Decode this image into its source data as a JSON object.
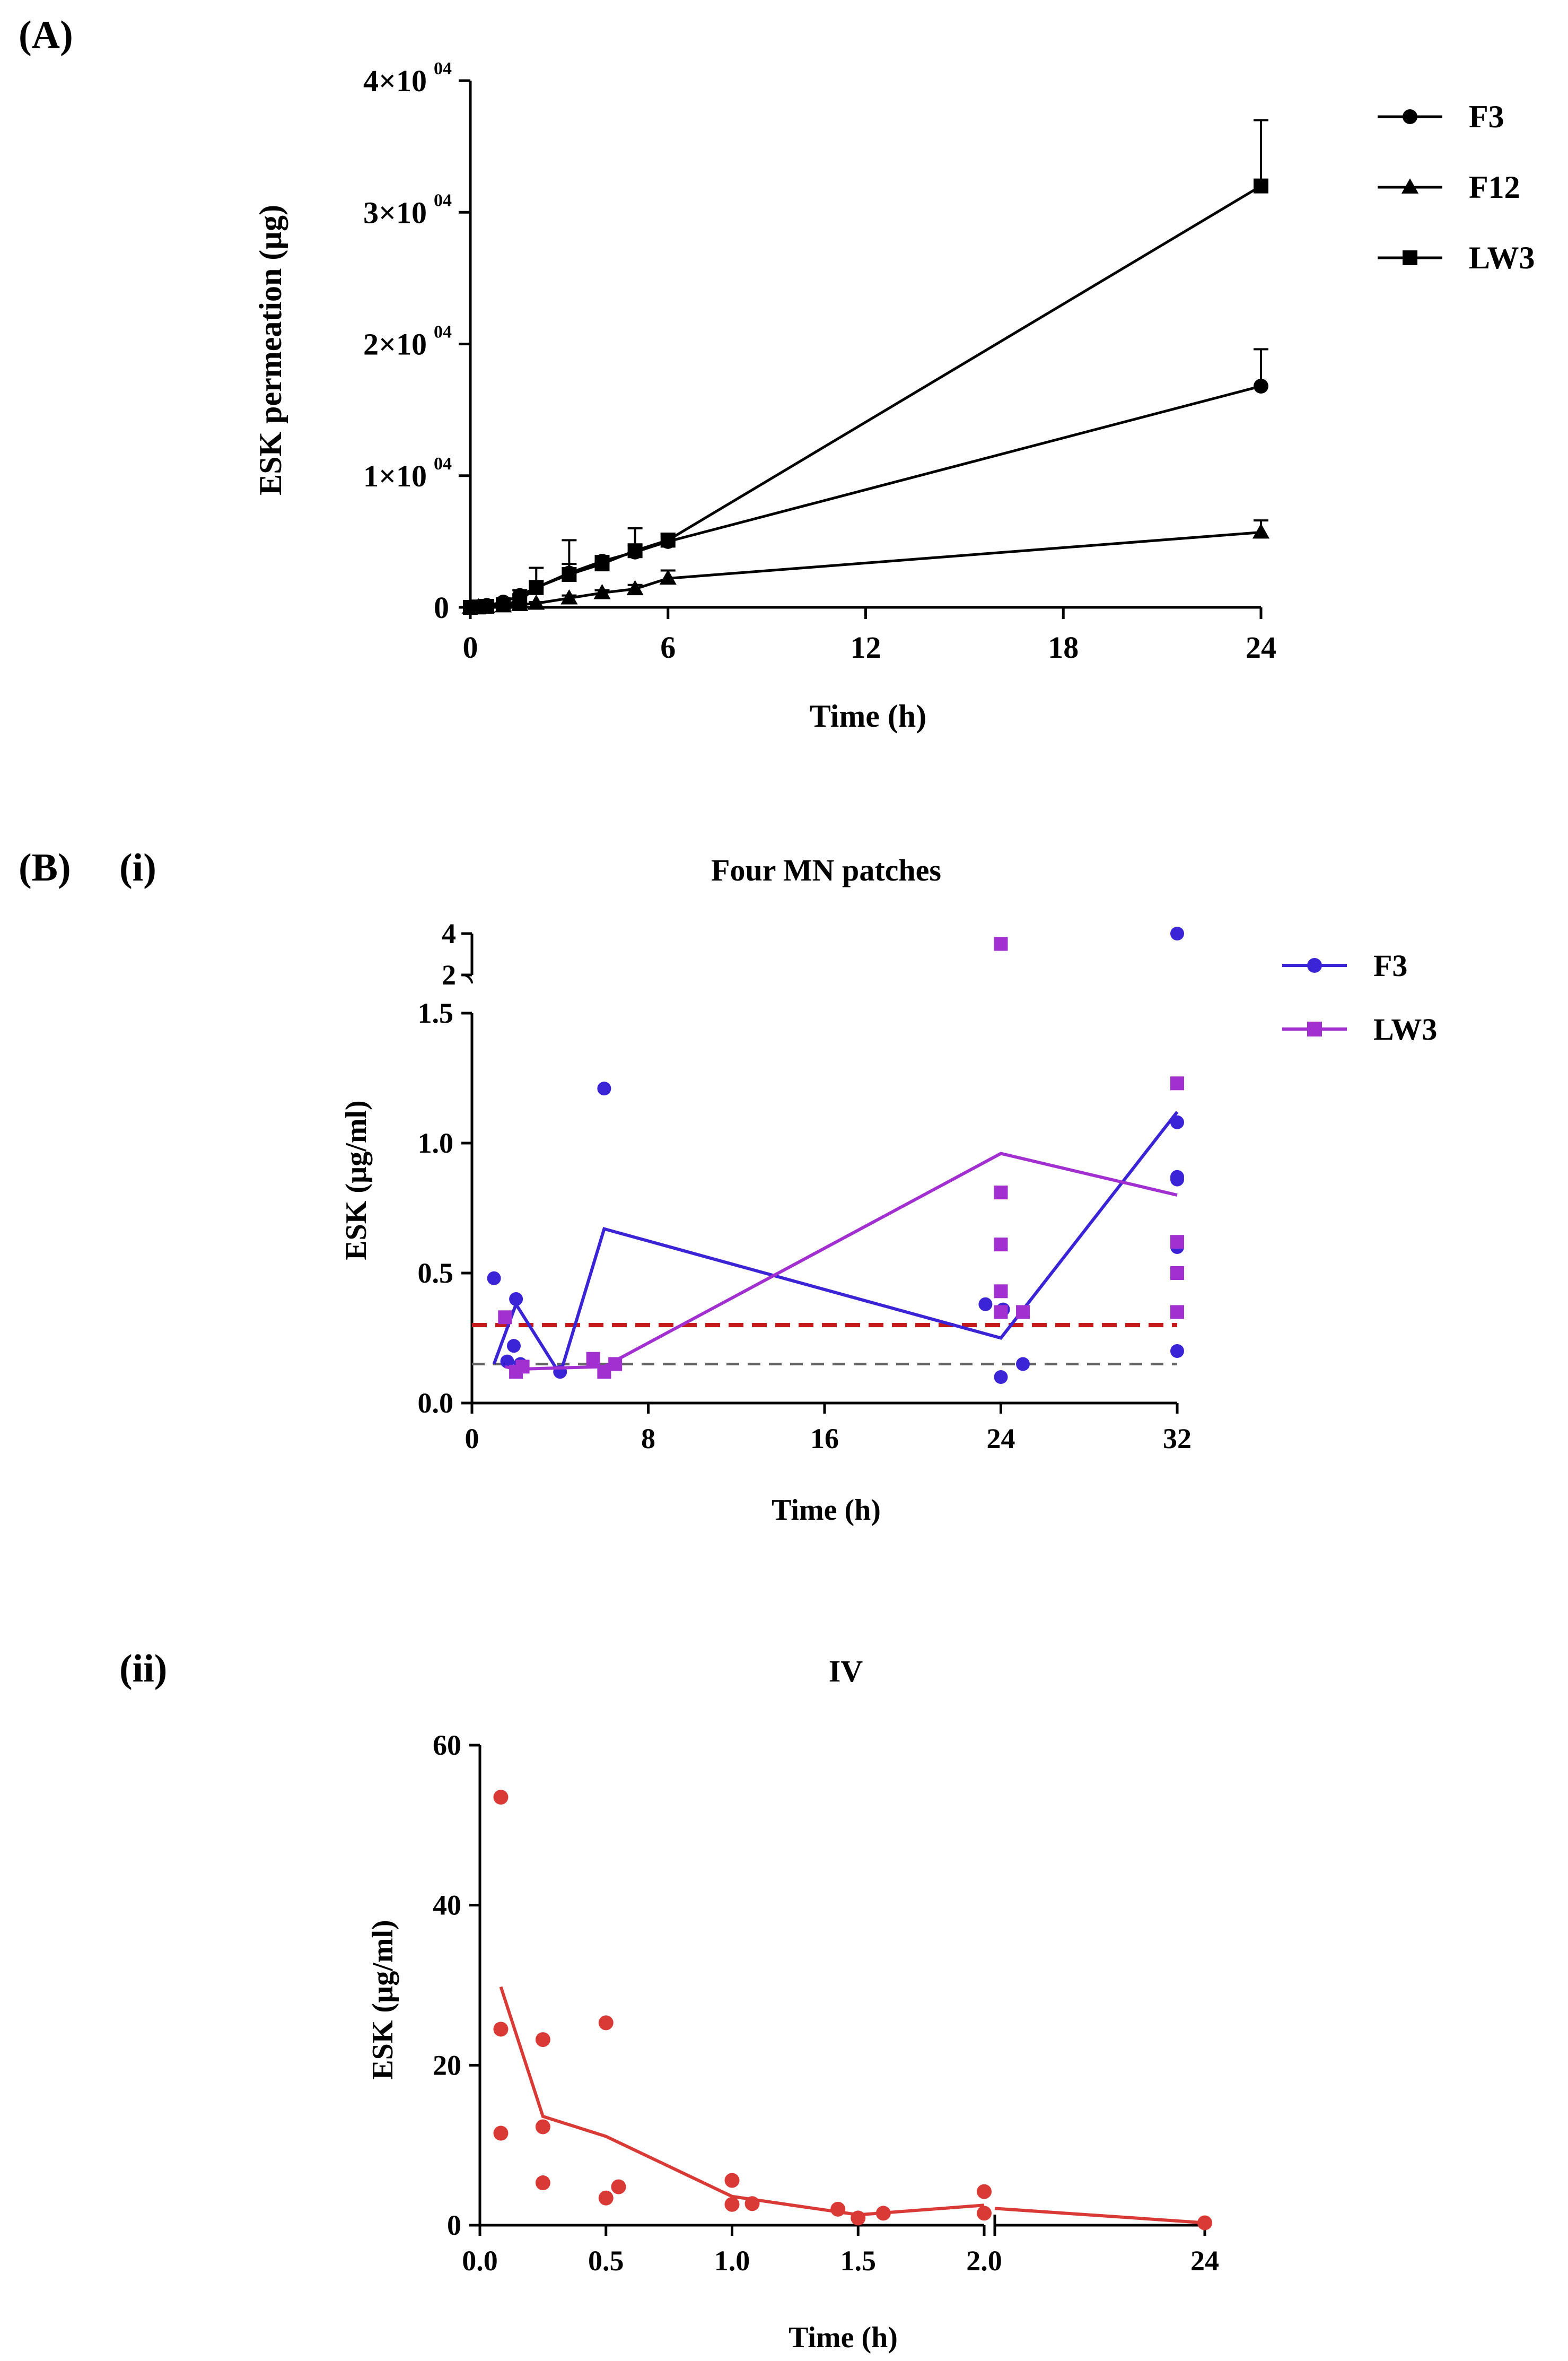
{
  "colors": {
    "black": "#000000",
    "f3_blue": "#3a24d6",
    "lw3_purple": "#a22fd0",
    "iv_red": "#d93a36",
    "ref_red": "#c41a1a",
    "ref_gray": "#666666"
  },
  "panels": {
    "a_label": "(A)",
    "b_label": "(B)",
    "bi_label": "(i)",
    "bii_label": "(ii)"
  },
  "chart_data": [
    {
      "id": "A",
      "type": "line",
      "title": "",
      "xlabel": "Time (h)",
      "ylabel": "ESK permeation (µg)",
      "xlim": [
        0,
        24
      ],
      "ylim": [
        0,
        40000
      ],
      "xticks": [
        "0",
        "6",
        "12",
        "18",
        "24"
      ],
      "ytick_mantissa": [
        "0",
        "1×10",
        "2×10",
        "3×10",
        "4×10"
      ],
      "ytick_exponent": [
        "",
        "04",
        "04",
        "04",
        "04"
      ],
      "grid": false,
      "legend_position": "top-right",
      "series": [
        {
          "name": "F3",
          "marker": "circle",
          "x": [
            0,
            0.25,
            0.5,
            1,
            1.5,
            2,
            3,
            4,
            5,
            6,
            24
          ],
          "y": [
            0,
            50,
            150,
            400,
            900,
            1500,
            2600,
            3500,
            4200,
            5000,
            16800
          ],
          "err": [
            0,
            0,
            0,
            200,
            400,
            500,
            700,
            300,
            500,
            400,
            2800
          ]
        },
        {
          "name": "F12",
          "marker": "triangle",
          "x": [
            0,
            0.25,
            0.5,
            1,
            1.5,
            2,
            3,
            4,
            5,
            6,
            24
          ],
          "y": [
            0,
            20,
            40,
            100,
            200,
            300,
            700,
            1100,
            1400,
            2200,
            5700
          ],
          "err": [
            0,
            0,
            0,
            0,
            100,
            100,
            200,
            200,
            300,
            600,
            900
          ]
        },
        {
          "name": "LW3",
          "marker": "square",
          "x": [
            0,
            0.25,
            0.5,
            1,
            1.5,
            2,
            3,
            4,
            5,
            6,
            24
          ],
          "y": [
            0,
            30,
            80,
            200,
            500,
            1500,
            2500,
            3300,
            4300,
            5100,
            32000
          ],
          "err": [
            0,
            0,
            0,
            100,
            500,
            1500,
            2600,
            600,
            1700,
            500,
            5000
          ]
        }
      ]
    },
    {
      "id": "B-i",
      "type": "scatter",
      "title": "Four MN patches",
      "xlabel": "Time (h)",
      "ylabel": "ESK (µg/ml)",
      "xlim": [
        0,
        32
      ],
      "ylim": [
        0,
        1.5
      ],
      "break_ylim": [
        2,
        4
      ],
      "xticks": [
        "0",
        "8",
        "16",
        "24",
        "32"
      ],
      "yticks": [
        "0.0",
        "0.5",
        "1.0",
        "1.5"
      ],
      "break_yticks": [
        "2",
        "4"
      ],
      "grid": false,
      "legend_position": "top-right",
      "reference_lines": [
        {
          "name": "red-dashed-line",
          "y": 0.3
        },
        {
          "name": "gray-dashed-line",
          "y": 0.15
        }
      ],
      "series": [
        {
          "name": "F3",
          "marker": "circle",
          "points": [
            [
              1,
              0.48
            ],
            [
              1.6,
              0.16
            ],
            [
              1.9,
              0.22
            ],
            [
              2.0,
              0.4
            ],
            [
              2.2,
              0.15
            ],
            [
              4,
              0.12
            ],
            [
              6,
              1.21
            ],
            [
              23.3,
              0.38
            ],
            [
              24,
              0.1
            ],
            [
              24.1,
              0.36
            ],
            [
              25,
              0.15
            ],
            [
              32,
              1.08
            ],
            [
              32,
              0.87
            ],
            [
              32,
              0.86
            ],
            [
              32,
              0.6
            ],
            [
              32,
              0.2
            ]
          ],
          "break_points": [
            [
              32,
              4
            ]
          ],
          "mean_line": [
            [
              1.0,
              0.15
            ],
            [
              2.0,
              0.38
            ],
            [
              4.0,
              0.11
            ],
            [
              6.0,
              0.67
            ],
            [
              24.0,
              0.25
            ],
            [
              32.0,
              1.12
            ]
          ]
        },
        {
          "name": "LW3",
          "marker": "square",
          "points": [
            [
              1.5,
              0.33
            ],
            [
              2,
              0.12
            ],
            [
              2.3,
              0.14
            ],
            [
              5.5,
              0.17
            ],
            [
              6,
              0.12
            ],
            [
              6.5,
              0.15
            ],
            [
              24,
              0.81
            ],
            [
              24,
              0.61
            ],
            [
              24,
              0.43
            ],
            [
              24,
              0.35
            ],
            [
              25,
              0.35
            ],
            [
              32,
              1.23
            ],
            [
              32,
              0.62
            ],
            [
              32,
              0.5
            ],
            [
              32,
              0.35
            ]
          ],
          "break_points": [
            [
              24,
              3.5
            ]
          ],
          "mean_line": [
            [
              1.5,
              0.14
            ],
            [
              2.0,
              0.13
            ],
            [
              6.0,
              0.14
            ],
            [
              24.0,
              0.96
            ],
            [
              32.0,
              0.8
            ]
          ]
        }
      ]
    },
    {
      "id": "B-ii",
      "type": "scatter",
      "title": "IV",
      "xlabel": "Time (h)",
      "ylabel": "ESK (µg/ml)",
      "xlim": [
        0,
        2
      ],
      "break_x": 24,
      "ylim": [
        0,
        60
      ],
      "xticks": [
        "0.0",
        "0.5",
        "1.0",
        "1.5",
        "2.0",
        "24"
      ],
      "yticks": [
        "0",
        "20",
        "40",
        "60"
      ],
      "grid": false,
      "series": [
        {
          "name": "IV",
          "marker": "circle",
          "points": [
            [
              0.083,
              53.5
            ],
            [
              0.083,
              24.5
            ],
            [
              0.083,
              11.5
            ],
            [
              0.25,
              23.2
            ],
            [
              0.25,
              12.3
            ],
            [
              0.25,
              5.3
            ],
            [
              0.5,
              25.3
            ],
            [
              0.5,
              3.4
            ],
            [
              0.55,
              4.8
            ],
            [
              1.0,
              5.6
            ],
            [
              1.0,
              2.6
            ],
            [
              1.08,
              2.7
            ],
            [
              1.42,
              2.0
            ],
            [
              1.5,
              0.9
            ],
            [
              1.6,
              1.5
            ],
            [
              2.0,
              4.2
            ],
            [
              2.0,
              1.5
            ],
            [
              24,
              0.3
            ]
          ],
          "mean_line": [
            [
              0.083,
              29.8
            ],
            [
              0.25,
              13.6
            ],
            [
              0.5,
              11.1
            ],
            [
              1.0,
              3.6
            ],
            [
              1.5,
              1.3
            ],
            [
              2.0,
              2.5
            ],
            [
              2.05,
              2.1
            ],
            [
              24,
              0.3
            ]
          ]
        }
      ]
    }
  ]
}
